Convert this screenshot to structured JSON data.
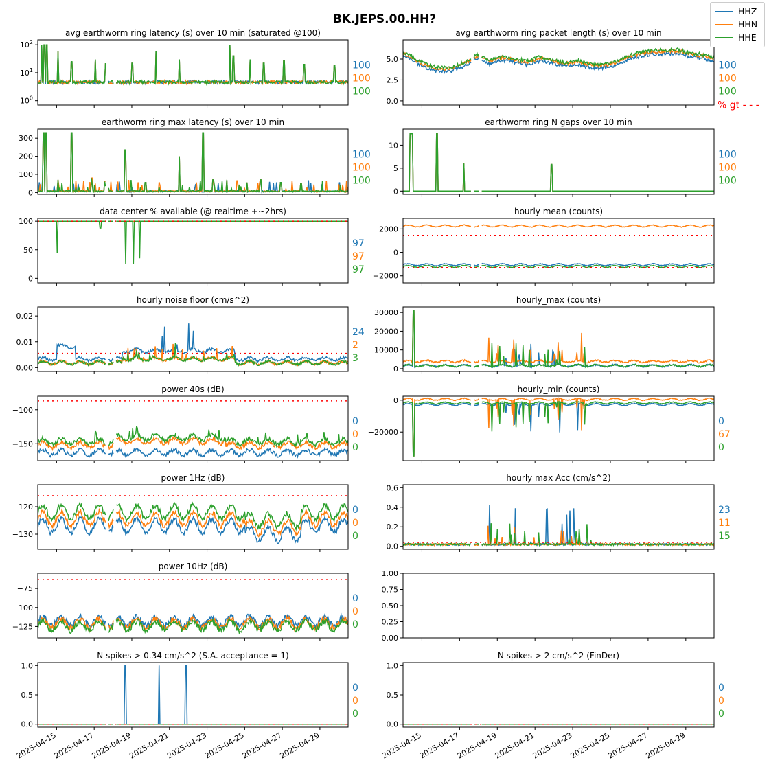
{
  "suptitle": "BK.JEPS.00.HH?",
  "legend": [
    {
      "name": "HHZ",
      "color": "#1f77b4"
    },
    {
      "name": "HHN",
      "color": "#ff7f0e"
    },
    {
      "name": "HHE",
      "color": "#2ca02c"
    }
  ],
  "threshold_color": "#ff0000",
  "x_ticks": [
    "2025-04-15",
    "2025-04-17",
    "2025-04-19",
    "2025-04-21",
    "2025-04-23",
    "2025-04-25",
    "2025-04-27",
    "2025-04-29"
  ],
  "chart_data": [
    {
      "id": "latency",
      "type": "line",
      "title": "avg earthworm ring latency (s)   over 10 min (saturated @100)",
      "scale": "log",
      "ylim": [
        0.7,
        150
      ],
      "yticks": [
        1,
        10,
        100
      ],
      "ytick_labels": [
        "10^0",
        "10^1",
        "10^2"
      ],
      "baseline": [
        4,
        4,
        4
      ],
      "spikes": [
        [
          0.6,
          100
        ],
        [
          1.0,
          100
        ],
        [
          1.3,
          100
        ],
        [
          3.0,
          60
        ],
        [
          5.0,
          25
        ],
        [
          8.5,
          30
        ],
        [
          10.0,
          22
        ],
        [
          14.0,
          22
        ],
        [
          17.5,
          60
        ],
        [
          21.0,
          30
        ],
        [
          28.5,
          100
        ],
        [
          29.0,
          40
        ],
        [
          31.5,
          30
        ],
        [
          33.5,
          22
        ],
        [
          36.5,
          28
        ],
        [
          39.5,
          20
        ],
        [
          44.0,
          18
        ]
      ],
      "threshold": null,
      "side": [
        "100",
        "100",
        "100"
      ]
    },
    {
      "id": "packet_length",
      "type": "line",
      "title": "avg earthworm ring packet length (s)   over 10 min",
      "scale": "linear",
      "ylim": [
        -0.5,
        7.3
      ],
      "yticks": [
        0,
        2.5,
        5
      ],
      "ytick_labels": [
        "0.0",
        "2.5",
        "5.0"
      ],
      "base_series": [
        5.8,
        5.0,
        4.2,
        3.9,
        4.0,
        4.6,
        5.5,
        4.8,
        5.3,
        5.0,
        4.7,
        5.2,
        4.9,
        4.5,
        4.8,
        4.4,
        4.3,
        4.6,
        5.3,
        5.7,
        6.0,
        6.0,
        6.1,
        5.7,
        5.5,
        5.2
      ],
      "offsets": [
        -0.4,
        -0.1,
        0.05
      ],
      "threshold": null,
      "side": [
        "100",
        "100",
        "100"
      ],
      "extra_side": "% gt - - -"
    },
    {
      "id": "max_latency",
      "type": "line",
      "title": "earthworm ring max latency (s)   over 10 min",
      "scale": "linear",
      "ylim": [
        -10,
        350
      ],
      "yticks": [
        0,
        100,
        200,
        300
      ],
      "ytick_labels": [
        "0",
        "100",
        "200",
        "300"
      ],
      "baseline": [
        3,
        3,
        3
      ],
      "spikes": [
        [
          0.9,
          330
        ],
        [
          1.2,
          330
        ],
        [
          5.0,
          330
        ],
        [
          13.0,
          235
        ],
        [
          21.0,
          200
        ],
        [
          24.5,
          330
        ],
        [
          3.0,
          70
        ],
        [
          8.0,
          80
        ],
        [
          10.0,
          60
        ],
        [
          16.0,
          55
        ],
        [
          26.0,
          70
        ],
        [
          28.0,
          70
        ],
        [
          31.0,
          55
        ],
        [
          33.0,
          70
        ],
        [
          36.0,
          55
        ],
        [
          39.0,
          50
        ]
      ],
      "threshold": null,
      "side": [
        "100",
        "100",
        "100"
      ]
    },
    {
      "id": "n_gaps",
      "type": "line",
      "title": "earthworm ring N gaps   over 10 min",
      "scale": "linear",
      "ylim": [
        -0.7,
        13.5
      ],
      "yticks": [
        0,
        5,
        10
      ],
      "ytick_labels": [
        "0",
        "5",
        "10"
      ],
      "baseline": [
        0,
        0,
        0
      ],
      "spikes": [
        [
          1.1,
          12.5
        ],
        [
          1.3,
          12.5
        ],
        [
          5.0,
          12.5
        ],
        [
          9.0,
          6
        ],
        [
          22.0,
          5.8
        ]
      ],
      "threshold": null,
      "side": [
        "100",
        "100",
        "100"
      ]
    },
    {
      "id": "availability",
      "type": "line",
      "title": "data center % available (@ realtime +~2hrs)",
      "scale": "linear",
      "ylim": [
        -8,
        105
      ],
      "yticks": [
        0,
        50,
        100
      ],
      "ytick_labels": [
        "0",
        "50",
        "100"
      ],
      "baseline": [
        100,
        100,
        100
      ],
      "dips": [
        [
          1.0,
          44
        ],
        [
          3.2,
          88
        ],
        [
          4.5,
          25
        ],
        [
          4.9,
          25
        ],
        [
          5.2,
          35
        ]
      ],
      "threshold": 100,
      "side": [
        "97",
        "97",
        "97"
      ]
    },
    {
      "id": "hourly_mean",
      "type": "line",
      "title": "hourly mean (counts)",
      "scale": "linear",
      "ylim": [
        -2600,
        2900
      ],
      "yticks": [
        -2000,
        0,
        2000
      ],
      "ytick_labels": [
        "−2000",
        "0",
        "2000"
      ],
      "levels": [
        -1050,
        2250,
        -1200
      ],
      "threshold_lines": [
        1450,
        -1300
      ],
      "side": []
    },
    {
      "id": "noise_floor",
      "type": "line",
      "title": "hourly noise floor (cm/s^2)",
      "scale": "linear",
      "ylim": [
        -0.0015,
        0.0235
      ],
      "yticks": [
        0,
        0.01,
        0.02
      ],
      "ytick_labels": [
        "0.00",
        "0.01",
        "0.02"
      ],
      "threshold": 0.0055,
      "side": [
        "24",
        "2",
        "3"
      ]
    },
    {
      "id": "hourly_max",
      "type": "line",
      "title": "hourly_max (counts)",
      "scale": "linear",
      "ylim": [
        -1500,
        33000
      ],
      "yticks": [
        0,
        10000,
        20000,
        30000
      ],
      "ytick_labels": [
        "0",
        "10000",
        "20000",
        "30000"
      ],
      "threshold": null,
      "side": []
    },
    {
      "id": "power_40s",
      "type": "line",
      "title": "power 40s (dB)",
      "scale": "linear",
      "ylim": [
        -175,
        -80
      ],
      "yticks": [
        -150,
        -100
      ],
      "ytick_labels": [
        "−150",
        "−100"
      ],
      "threshold": -87,
      "side": [
        "0",
        "0",
        "0"
      ]
    },
    {
      "id": "hourly_min",
      "type": "line",
      "title": "hourly_min (counts)",
      "scale": "linear",
      "ylim": [
        -38000,
        2500
      ],
      "yticks": [
        -20000,
        0
      ],
      "ytick_labels": [
        "−20000",
        "0"
      ],
      "threshold": null,
      "side": [
        "0",
        "67",
        "0"
      ]
    },
    {
      "id": "power_1hz",
      "type": "line",
      "title": "power 1Hz (dB)",
      "scale": "linear",
      "ylim": [
        -135.5,
        -112
      ],
      "yticks": [
        -130,
        -120
      ],
      "ytick_labels": [
        "−130",
        "−120"
      ],
      "threshold": -116,
      "side": [
        "0",
        "0",
        "0"
      ]
    },
    {
      "id": "max_acc",
      "type": "line",
      "title": "hourly max Acc (cm/s^2)",
      "scale": "linear",
      "ylim": [
        -0.03,
        0.63
      ],
      "yticks": [
        0,
        0.2,
        0.4,
        0.6
      ],
      "ytick_labels": [
        "0.0",
        "0.2",
        "0.4",
        "0.6"
      ],
      "threshold": 0.04,
      "side": [
        "23",
        "11",
        "15"
      ]
    },
    {
      "id": "power_10hz",
      "type": "line",
      "title": "power 10Hz (dB)",
      "scale": "linear",
      "ylim": [
        -140,
        -55
      ],
      "yticks": [
        -125,
        -100,
        -75
      ],
      "ytick_labels": [
        "−125",
        "−100",
        "−75"
      ],
      "threshold": -63,
      "side": [
        "0",
        "0",
        "0"
      ]
    },
    {
      "id": "empty",
      "type": "empty",
      "title": "",
      "scale": "linear",
      "ylim": [
        0,
        1
      ],
      "yticks": [
        0,
        0.25,
        0.5,
        0.75,
        1
      ],
      "ytick_labels": [
        "0.00",
        "0.25",
        "0.50",
        "0.75",
        "1.00"
      ],
      "threshold": null,
      "side": []
    },
    {
      "id": "spikes_034",
      "type": "line",
      "title": "N spikes > 0.34 cm/s^2 (S.A. acceptance = 1)",
      "scale": "linear",
      "ylim": [
        -0.05,
        1.05
      ],
      "yticks": [
        0,
        0.5,
        1
      ],
      "ytick_labels": [
        "0.0",
        "0.5",
        "1.0"
      ],
      "baseline": [
        0,
        0,
        0
      ],
      "spikes": [
        [
          13.0,
          1
        ],
        [
          18.0,
          1
        ],
        [
          22.0,
          1
        ]
      ],
      "threshold": 0,
      "side": [
        "0",
        "0",
        "0"
      ]
    },
    {
      "id": "spikes_2",
      "type": "line",
      "title": "N spikes > 2 cm/s^2 (FinDer)",
      "scale": "linear",
      "ylim": [
        -0.05,
        1.05
      ],
      "yticks": [
        0,
        0.5,
        1
      ],
      "ytick_labels": [
        "0.0",
        "0.5",
        "1.0"
      ],
      "baseline": [
        0,
        0,
        0
      ],
      "spikes": [],
      "threshold": 0,
      "side": [
        "0",
        "0",
        "0"
      ]
    }
  ]
}
